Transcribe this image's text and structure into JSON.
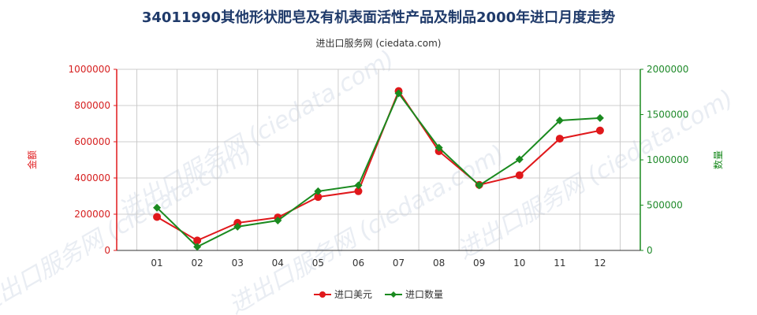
{
  "title": "34011990其他形状肥皂及有机表面活性产品及制品2000年进口月度走势",
  "subtitle": "进出口服务网 (ciedata.com)",
  "watermark": "进出口服务网 (ciedata.com)",
  "colors": {
    "amount": "#e0181b",
    "quantity": "#1a8a1f",
    "title": "#1f3a6a",
    "grid": "#cccccc"
  },
  "chart_data": {
    "type": "line",
    "categories": [
      "01",
      "02",
      "03",
      "04",
      "05",
      "06",
      "07",
      "08",
      "09",
      "10",
      "11",
      "12"
    ],
    "y_left": {
      "label": "金额",
      "ylim": [
        0,
        1000000
      ],
      "ticks": [
        0,
        200000,
        400000,
        600000,
        800000,
        1000000
      ]
    },
    "y_right": {
      "label": "数量",
      "ylim": [
        0,
        2000000
      ],
      "ticks": [
        0,
        500000,
        1000000,
        1500000,
        2000000
      ]
    },
    "series": [
      {
        "name": "进口美元",
        "axis": "left",
        "values": [
          185000,
          55000,
          152000,
          182000,
          295000,
          327000,
          880000,
          548000,
          362000,
          415000,
          617000,
          662000
        ]
      },
      {
        "name": "进口数量",
        "axis": "right",
        "values": [
          472000,
          40000,
          262000,
          330000,
          653000,
          718000,
          1735000,
          1135000,
          718000,
          1005000,
          1435000,
          1462000
        ]
      }
    ],
    "grid": true,
    "legend_position": "bottom-center"
  }
}
